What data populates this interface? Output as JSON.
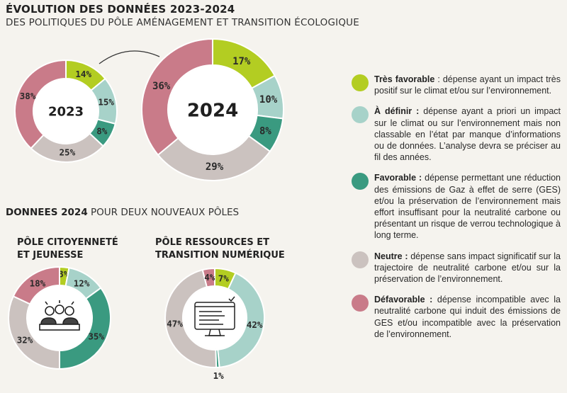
{
  "header": {
    "title": "ÉVOLUTION DES DONNÉES 2023-2024",
    "subtitle": "DES POLITIQUES DU PÔLE AMÉNAGEMENT ET TRANSITION ÉCOLOGIQUE"
  },
  "section2": {
    "bold": "DONNEES 2024",
    "rest": " POUR DEUX NOUVEAUX PÔLES"
  },
  "poles": {
    "citoyennete": {
      "line1": "PÔLE CITOYENNETÉ",
      "line2": "ET JEUNESSE"
    },
    "ressources": {
      "line1": "PÔLE RESSOURCES ET",
      "line2": "TRANSITION NUMÉRIQUE"
    }
  },
  "colors": {
    "tres_favorable": "#b3cd22",
    "a_definir": "#a7d2c9",
    "favorable": "#3a9a80",
    "neutre": "#cbc2bf",
    "defavorable": "#c97b89"
  },
  "chart_data": [
    {
      "type": "pie",
      "center_label": "2023",
      "categories": [
        "Très favorable",
        "À définir",
        "Favorable",
        "Neutre",
        "Défavorable"
      ],
      "values": [
        14,
        15,
        8,
        25,
        38
      ],
      "value_labels": [
        "14%",
        "15%",
        "8%",
        "25%",
        "38%"
      ]
    },
    {
      "type": "pie",
      "center_label": "2024",
      "categories": [
        "Très favorable",
        "À définir",
        "Favorable",
        "Neutre",
        "Défavorable"
      ],
      "values": [
        17,
        10,
        8,
        29,
        36
      ],
      "value_labels": [
        "17%",
        "10%",
        "8%",
        "29%",
        "36%"
      ]
    },
    {
      "type": "pie",
      "categories": [
        "Très favorable",
        "À définir",
        "Favorable",
        "Neutre",
        "Défavorable"
      ],
      "values": [
        3,
        12,
        35,
        32,
        18
      ],
      "value_labels": [
        "3%",
        "12%",
        "35%",
        "32%",
        "18%"
      ],
      "icon": "people-meeting-icon"
    },
    {
      "type": "pie",
      "categories": [
        "Très favorable",
        "À définir",
        "Favorable",
        "Neutre",
        "Défavorable"
      ],
      "values": [
        7,
        42,
        1,
        47,
        4
      ],
      "value_labels": [
        "7%",
        "42%",
        "1%",
        "47%",
        "4%"
      ],
      "icon": "computer-monitor-icon"
    }
  ],
  "legend": [
    {
      "key": "tres_favorable",
      "term": "Très favorable",
      "text": " : dépense ayant un impact très positif sur le climat et/ou sur l’environnement."
    },
    {
      "key": "a_definir",
      "term": "À définir :",
      "text": " dépense ayant a priori un impact sur le climat ou sur l’environnement mais non classable en l’état par manque d’informations ou de données. L’analyse devra se préciser au fil des années."
    },
    {
      "key": "favorable",
      "term": "Favorable :",
      "text": " dépense permettant une réduction des émissions de Gaz à effet de serre (GES) et/ou la préservation de l’environnement mais effort insuffisant pour la neutralité carbone ou présentant un risque de verrou technologique à long terme."
    },
    {
      "key": "neutre",
      "term": "Neutre :",
      "text": " dépense sans impact significatif sur la trajectoire de neutralité carbone et/ou sur la préservation de l’environnement."
    },
    {
      "key": "defavorable",
      "term": "Défavorable :",
      "text": " dépense incompatible avec la neutralité carbone qui induit des émissions de GES et/ou incompatible avec la préservation de l’environnement."
    }
  ]
}
